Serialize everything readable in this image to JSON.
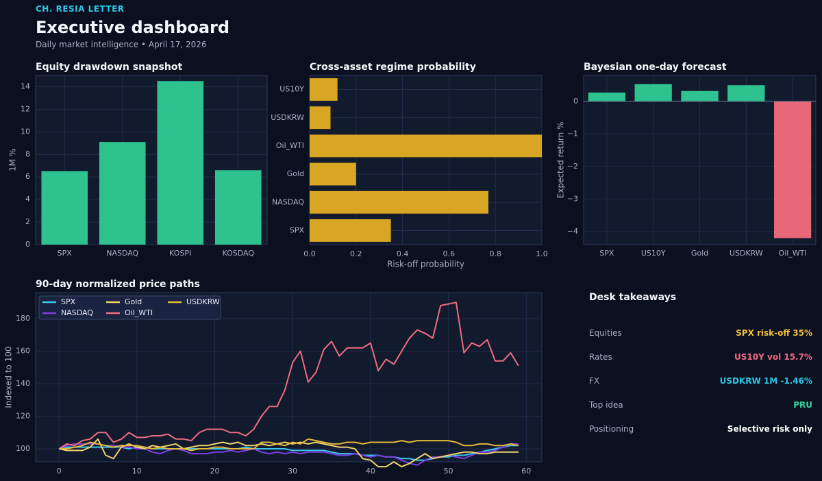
{
  "header": {
    "brand": "CH. RESIA LETTER",
    "title": "Executive dashboard",
    "subtitle": "Daily market intelligence • April 17, 2026"
  },
  "colors": {
    "bg": "#0b1020",
    "panel": "#121a2e",
    "grid": "#243150",
    "text_muted": "#a7b0c6",
    "green": "#2ec28f",
    "gold": "#d9a623",
    "red": "#e8687a"
  },
  "chart_data": [
    {
      "id": "drawdown",
      "type": "bar",
      "title": "Equity drawdown snapshot",
      "categories": [
        "SPX",
        "NASDAQ",
        "KOSPI",
        "KOSDAQ"
      ],
      "values": [
        6.5,
        9.1,
        14.5,
        6.6
      ],
      "ylabel": "1M %",
      "ylim": [
        0,
        15
      ],
      "yticks": [
        0,
        2,
        4,
        6,
        8,
        10,
        12,
        14
      ],
      "color": "#2ec28f"
    },
    {
      "id": "regime",
      "type": "bar",
      "orientation": "horizontal",
      "title": "Cross-asset regime probability",
      "categories": [
        "SPX",
        "NASDAQ",
        "Gold",
        "Oil_WTI",
        "USDKRW",
        "US10Y"
      ],
      "values": [
        0.35,
        0.77,
        0.2,
        1.0,
        0.09,
        0.12
      ],
      "xlabel": "Risk-off probability",
      "xlim": [
        0,
        1.0
      ],
      "xticks": [
        "0.0",
        "0.2",
        "0.4",
        "0.6",
        "0.8",
        "1.0"
      ],
      "color": "#d9a623"
    },
    {
      "id": "forecast",
      "type": "bar",
      "title": "Bayesian one-day forecast",
      "categories": [
        "SPX",
        "US10Y",
        "Gold",
        "USDKRW",
        "Oil_WTI"
      ],
      "values": [
        0.27,
        0.53,
        0.32,
        0.5,
        -4.2
      ],
      "ylabel": "Expected return %",
      "ylim": [
        -4.4,
        0.8
      ],
      "yticks": [
        0,
        -1,
        -2,
        -3,
        -4
      ],
      "ytick_labels": [
        "0",
        "−1",
        "−2",
        "−3",
        "−4"
      ],
      "pos_color": "#2ec28f",
      "neg_color": "#e8687a"
    },
    {
      "id": "paths",
      "type": "line",
      "title": "90-day normalized price paths",
      "ylabel": "Indexed to 100",
      "xlim": [
        -3,
        62
      ],
      "ylim": [
        92,
        196
      ],
      "xticks": [
        0,
        10,
        20,
        30,
        40,
        50,
        60
      ],
      "yticks": [
        100,
        120,
        140,
        160,
        180
      ],
      "legend": "top-left",
      "series": [
        {
          "name": "SPX",
          "color": "#38c9f0",
          "values": [
            100,
            101,
            101,
            101,
            101,
            101,
            101,
            101,
            101,
            100,
            101,
            101,
            100,
            100,
            100,
            100,
            100,
            100,
            100,
            100,
            100,
            100,
            100,
            100,
            101,
            100,
            100,
            100,
            100,
            100,
            99,
            99,
            99,
            99,
            99,
            98,
            97,
            97,
            97,
            96,
            96,
            96,
            95,
            95,
            94,
            94,
            93,
            93,
            94,
            95,
            95,
            96,
            96,
            97,
            98,
            99,
            100,
            101,
            102,
            102
          ]
        },
        {
          "name": "NASDAQ",
          "color": "#7b3fe4",
          "values": [
            100,
            102,
            103,
            103,
            103,
            103,
            102,
            102,
            101,
            101,
            100,
            100,
            98,
            97,
            99,
            100,
            99,
            97,
            97,
            97,
            98,
            98,
            99,
            98,
            99,
            100,
            98,
            97,
            98,
            97,
            98,
            97,
            98,
            98,
            98,
            97,
            96,
            96,
            97,
            96,
            95,
            96,
            95,
            95,
            93,
            91,
            90,
            93,
            95,
            95,
            96,
            95,
            94,
            96,
            98,
            98,
            99,
            101,
            103,
            103
          ]
        },
        {
          "name": "Gold",
          "color": "#f0d36b",
          "values": [
            100,
            99,
            99,
            99,
            101,
            106,
            96,
            94,
            101,
            103,
            101,
            100,
            102,
            101,
            102,
            103,
            100,
            101,
            102,
            102,
            103,
            104,
            103,
            104,
            102,
            102,
            103,
            102,
            103,
            104,
            103,
            104,
            103,
            104,
            103,
            102,
            101,
            101,
            100,
            94,
            93,
            89,
            89,
            92,
            89,
            91,
            94,
            97,
            94,
            95,
            96,
            97,
            98,
            98,
            97,
            97,
            98,
            98,
            98,
            98
          ]
        },
        {
          "name": "Oil_WTI",
          "color": "#f06b82",
          "values": [
            100,
            103,
            102,
            105,
            106,
            110,
            110,
            104,
            106,
            110,
            107,
            107,
            108,
            108,
            109,
            106,
            106,
            105,
            110,
            112,
            112,
            112,
            110,
            110,
            108,
            112,
            120,
            126,
            126,
            136,
            153,
            160,
            141,
            147,
            161,
            166,
            157,
            162,
            162,
            162,
            165,
            148,
            155,
            152,
            160,
            168,
            173,
            171,
            168,
            188,
            189,
            190,
            159,
            165,
            163,
            167,
            154,
            154,
            159,
            151
          ]
        },
        {
          "name": "USDKRW",
          "color": "#e6b83a",
          "values": [
            100,
            100,
            101,
            102,
            104,
            103,
            102,
            101,
            102,
            102,
            102,
            101,
            100,
            101,
            100,
            100,
            100,
            99,
            100,
            100,
            101,
            101,
            100,
            100,
            100,
            100,
            104,
            104,
            103,
            102,
            104,
            103,
            106,
            105,
            104,
            103,
            103,
            104,
            104,
            103,
            104,
            104,
            104,
            104,
            105,
            104,
            105,
            105,
            105,
            105,
            105,
            104,
            102,
            102,
            103,
            103,
            102,
            102,
            103,
            102
          ]
        }
      ]
    }
  ],
  "takeaways": {
    "title": "Desk takeaways",
    "rows": [
      {
        "label": "Equities",
        "value": "SPX risk-off 35%",
        "color": "#f2bf3a"
      },
      {
        "label": "Rates",
        "value": "US10Y vol 15.7%",
        "color": "#f06b82"
      },
      {
        "label": "FX",
        "value": "USDKRW 1M -1.46%",
        "color": "#2ec5e6"
      },
      {
        "label": "Top idea",
        "value": "PRU",
        "color": "#34d39e"
      },
      {
        "label": "Positioning",
        "value": "Selective risk only",
        "color": "#ffffff"
      }
    ]
  }
}
